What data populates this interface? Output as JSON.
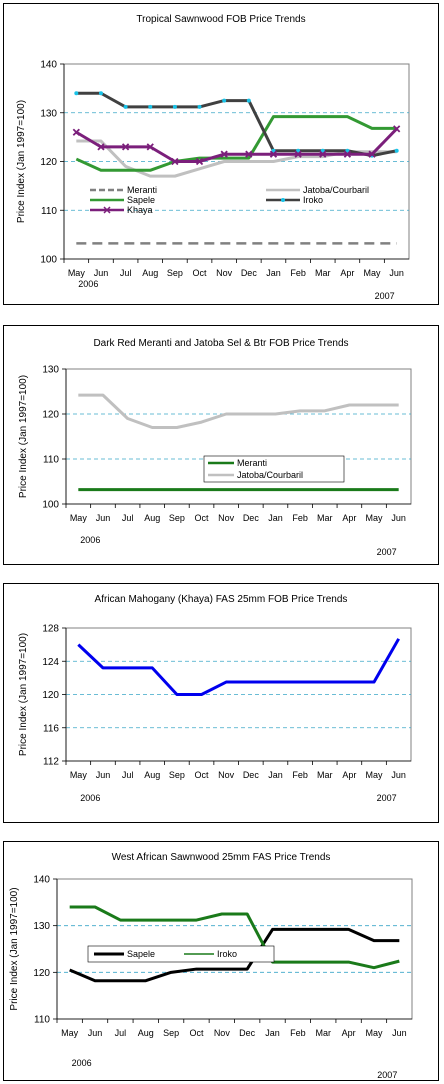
{
  "chart_data": [
    {
      "type": "line",
      "title": "Tropical Sawnwood FOB Price Trends",
      "ylabel": "Price Index (Jan 1997=100)",
      "categories": [
        "May",
        "Jun",
        "Jul",
        "Aug",
        "Sep",
        "Oct",
        "Nov",
        "Dec",
        "Jan",
        "Feb",
        "Mar",
        "Apr",
        "May",
        "Jun"
      ],
      "year_labels": [
        "2006",
        "2007"
      ],
      "ylim": [
        100,
        140
      ],
      "yticks": [
        100,
        110,
        120,
        130,
        140
      ],
      "grid": true,
      "legend": "center",
      "series": [
        {
          "name": "Meranti",
          "color": "#808080",
          "dash": true,
          "values": [
            103.2,
            103.2,
            103.2,
            103.2,
            103.2,
            103.2,
            103.2,
            103.2,
            103.2,
            103.2,
            103.2,
            103.2,
            103.2,
            103.2
          ]
        },
        {
          "name": "Jatoba/Courbaril",
          "color": "#c0c0c0",
          "values": [
            124.2,
            124.2,
            119,
            117,
            117,
            118.5,
            120,
            120,
            120,
            121,
            121,
            122,
            122,
            122
          ]
        },
        {
          "name": "Sapele",
          "color": "#339933",
          "values": [
            120.5,
            118.2,
            118.2,
            118.2,
            120,
            120.7,
            120.7,
            120.7,
            129.2,
            129.2,
            129.2,
            129.2,
            126.8,
            126.8
          ]
        },
        {
          "name": "Iroko",
          "color": "#404040",
          "marker": "dot",
          "values": [
            134,
            134,
            131.2,
            131.2,
            131.2,
            131.2,
            132.5,
            132.5,
            122.2,
            122.2,
            122.2,
            122.2,
            121.2,
            122.2
          ]
        },
        {
          "name": "Khaya",
          "color": "#7b1f7b",
          "marker": "x",
          "values": [
            126,
            123,
            123,
            123,
            120,
            120,
            121.5,
            121.5,
            121.5,
            121.5,
            121.5,
            121.5,
            121.5,
            126.7
          ]
        }
      ]
    },
    {
      "type": "line",
      "title": "Dark Red Meranti and Jatoba Sel & Btr FOB Price Trends",
      "ylabel": "Price Index (Jan 1997=100)",
      "categories": [
        "May",
        "Jun",
        "Jul",
        "Aug",
        "Sep",
        "Oct",
        "Nov",
        "Dec",
        "Jan",
        "Feb",
        "Mar",
        "Apr",
        "May",
        "Jun"
      ],
      "year_labels": [
        "2006",
        "2007"
      ],
      "ylim": [
        100,
        130
      ],
      "yticks": [
        100,
        110,
        120,
        130
      ],
      "grid": true,
      "legend": "center",
      "series": [
        {
          "name": "Meranti",
          "color": "#1a7a1a",
          "values": [
            103.2,
            103.2,
            103.2,
            103.2,
            103.2,
            103.2,
            103.2,
            103.2,
            103.2,
            103.2,
            103.2,
            103.2,
            103.2,
            103.2
          ]
        },
        {
          "name": "Jatoba/Courbaril",
          "color": "#c0c0c0",
          "values": [
            124.2,
            124.2,
            119,
            117,
            117,
            118.2,
            120,
            120,
            120,
            120.7,
            120.7,
            122,
            122,
            122
          ]
        }
      ]
    },
    {
      "type": "line",
      "title": "African Mahogany (Khaya) FAS 25mm FOB Price Trends",
      "ylabel": "Price Index (Jan 1997=100)",
      "categories": [
        "May",
        "Jun",
        "Jul",
        "Aug",
        "Sep",
        "Oct",
        "Nov",
        "Dec",
        "Jan",
        "Feb",
        "Mar",
        "Apr",
        "May",
        "Jun"
      ],
      "year_labels": [
        "2006",
        "2007"
      ],
      "ylim": [
        112,
        128
      ],
      "yticks": [
        112,
        116,
        120,
        124,
        128
      ],
      "grid": true,
      "series": [
        {
          "name": "",
          "color": "#0000ee",
          "values": [
            126,
            123.2,
            123.2,
            123.2,
            120,
            120,
            121.5,
            121.5,
            121.5,
            121.5,
            121.5,
            121.5,
            121.5,
            126.7
          ]
        }
      ]
    },
    {
      "type": "line",
      "title": "West  African Sawnwood 25mm FAS Price Trends",
      "ylabel": "Price Index (Jan 1997=100)",
      "categories": [
        "May",
        "Jun",
        "Jul",
        "Aug",
        "Sep",
        "Oct",
        "Nov",
        "Dec",
        "Jan",
        "Feb",
        "Mar",
        "Apr",
        "May",
        "Jun"
      ],
      "year_labels": [
        "2006",
        "2007"
      ],
      "ylim": [
        110,
        140
      ],
      "yticks": [
        110,
        120,
        130,
        140
      ],
      "grid": true,
      "legend": "center-left",
      "series": [
        {
          "name": "Sapele",
          "color": "#000000",
          "values": [
            120.5,
            118.2,
            118.2,
            118.2,
            120,
            120.7,
            120.7,
            120.7,
            129.2,
            129.2,
            129.2,
            129.2,
            126.8,
            126.8
          ]
        },
        {
          "name": "Iroko",
          "color": "#1a7a1a",
          "values": [
            134,
            134,
            131.2,
            131.2,
            131.2,
            131.2,
            132.5,
            132.5,
            122.2,
            122.2,
            122.2,
            122.2,
            121,
            122.4
          ]
        }
      ]
    }
  ]
}
